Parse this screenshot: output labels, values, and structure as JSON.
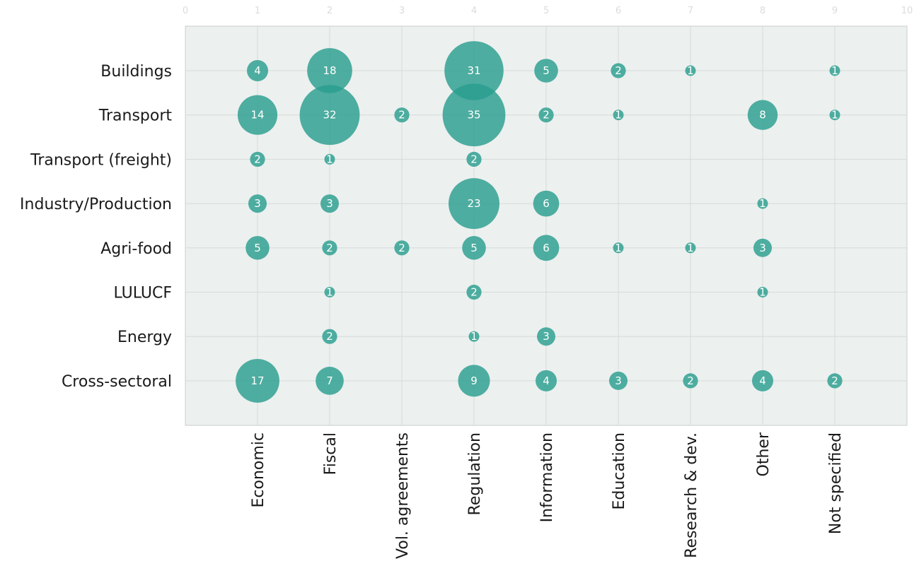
{
  "chart_data": {
    "type": "scatter",
    "subtype": "bubble",
    "title": "",
    "xlabel": "",
    "ylabel": "",
    "top_axis_ticks": [
      "0",
      "1",
      "2",
      "3",
      "4",
      "5",
      "6",
      "7",
      "8",
      "9",
      "10"
    ],
    "xlim": [
      0,
      10
    ],
    "grid": true,
    "legend": "none",
    "bubble_color": "#2a9d8f",
    "categories_x": [
      "Economic",
      "Fiscal",
      "Vol. agreements",
      "Regulation",
      "Information",
      "Education",
      "Research & dev.",
      "Other",
      "Not specified"
    ],
    "categories_y": [
      "Buildings",
      "Transport",
      "Transport (freight)",
      "Industry/Production",
      "Agri-food",
      "LULUCF",
      "Energy",
      "Cross-sectoral"
    ],
    "points": [
      {
        "y": "Buildings",
        "x": "Economic",
        "value": 4
      },
      {
        "y": "Buildings",
        "x": "Fiscal",
        "value": 18
      },
      {
        "y": "Buildings",
        "x": "Regulation",
        "value": 31
      },
      {
        "y": "Buildings",
        "x": "Information",
        "value": 5
      },
      {
        "y": "Buildings",
        "x": "Education",
        "value": 2
      },
      {
        "y": "Buildings",
        "x": "Research & dev.",
        "value": 1
      },
      {
        "y": "Buildings",
        "x": "Not specified",
        "value": 1
      },
      {
        "y": "Transport",
        "x": "Economic",
        "value": 14
      },
      {
        "y": "Transport",
        "x": "Fiscal",
        "value": 32
      },
      {
        "y": "Transport",
        "x": "Vol. agreements",
        "value": 2
      },
      {
        "y": "Transport",
        "x": "Regulation",
        "value": 35
      },
      {
        "y": "Transport",
        "x": "Information",
        "value": 2
      },
      {
        "y": "Transport",
        "x": "Education",
        "value": 1
      },
      {
        "y": "Transport",
        "x": "Other",
        "value": 8
      },
      {
        "y": "Transport",
        "x": "Not specified",
        "value": 1
      },
      {
        "y": "Transport (freight)",
        "x": "Economic",
        "value": 2
      },
      {
        "y": "Transport (freight)",
        "x": "Fiscal",
        "value": 1
      },
      {
        "y": "Transport (freight)",
        "x": "Regulation",
        "value": 2
      },
      {
        "y": "Industry/Production",
        "x": "Economic",
        "value": 3
      },
      {
        "y": "Industry/Production",
        "x": "Fiscal",
        "value": 3
      },
      {
        "y": "Industry/Production",
        "x": "Regulation",
        "value": 23
      },
      {
        "y": "Industry/Production",
        "x": "Information",
        "value": 6
      },
      {
        "y": "Industry/Production",
        "x": "Other",
        "value": 1
      },
      {
        "y": "Agri-food",
        "x": "Economic",
        "value": 5
      },
      {
        "y": "Agri-food",
        "x": "Fiscal",
        "value": 2
      },
      {
        "y": "Agri-food",
        "x": "Vol. agreements",
        "value": 2
      },
      {
        "y": "Agri-food",
        "x": "Regulation",
        "value": 5
      },
      {
        "y": "Agri-food",
        "x": "Information",
        "value": 6
      },
      {
        "y": "Agri-food",
        "x": "Education",
        "value": 1
      },
      {
        "y": "Agri-food",
        "x": "Research & dev.",
        "value": 1
      },
      {
        "y": "Agri-food",
        "x": "Other",
        "value": 3
      },
      {
        "y": "LULUCF",
        "x": "Fiscal",
        "value": 1
      },
      {
        "y": "LULUCF",
        "x": "Regulation",
        "value": 2
      },
      {
        "y": "LULUCF",
        "x": "Other",
        "value": 1
      },
      {
        "y": "Energy",
        "x": "Fiscal",
        "value": 2
      },
      {
        "y": "Energy",
        "x": "Regulation",
        "value": 1
      },
      {
        "y": "Energy",
        "x": "Information",
        "value": 3
      },
      {
        "y": "Cross-sectoral",
        "x": "Economic",
        "value": 17
      },
      {
        "y": "Cross-sectoral",
        "x": "Fiscal",
        "value": 7
      },
      {
        "y": "Cross-sectoral",
        "x": "Regulation",
        "value": 9
      },
      {
        "y": "Cross-sectoral",
        "x": "Information",
        "value": 4
      },
      {
        "y": "Cross-sectoral",
        "x": "Education",
        "value": 3
      },
      {
        "y": "Cross-sectoral",
        "x": "Research & dev.",
        "value": 2
      },
      {
        "y": "Cross-sectoral",
        "x": "Other",
        "value": 4
      },
      {
        "y": "Cross-sectoral",
        "x": "Not specified",
        "value": 2
      }
    ]
  }
}
